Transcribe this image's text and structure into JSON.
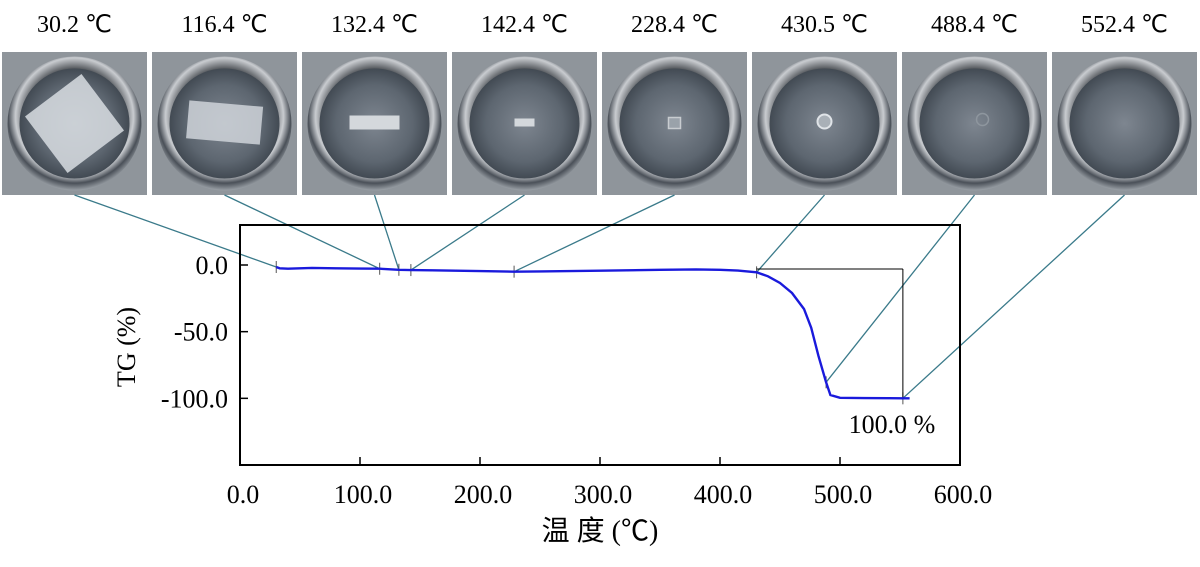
{
  "chart_data": {
    "type": "line",
    "xlabel": "温 度 (℃)",
    "ylabel": "TG (%)",
    "xlim": [
      0,
      600
    ],
    "ylim": [
      -150,
      30
    ],
    "x_ticks": [
      "0.0",
      "100.0",
      "200.0",
      "300.0",
      "400.0",
      "500.0",
      "600.0"
    ],
    "x_tick_values": [
      0,
      100,
      200,
      300,
      400,
      500,
      600
    ],
    "y_ticks": [
      "0.0",
      "-50.0",
      "-100.0"
    ],
    "y_tick_values": [
      0,
      -50,
      -100
    ],
    "grid": false,
    "series": [
      {
        "color": "#1a1adc",
        "x": [
          30.2,
          33,
          40,
          60,
          80,
          100,
          116.4,
          125,
          132.4,
          142.4,
          160,
          180,
          200,
          228.4,
          250,
          300,
          350,
          380,
          400,
          415,
          430.5,
          440,
          450,
          460,
          470,
          476,
          482,
          488.4,
          492,
          500,
          520,
          540,
          552.4,
          558
        ],
        "values": [
          -1.5,
          -2.5,
          -2.8,
          -2.2,
          -2.5,
          -2.7,
          -2.8,
          -3.2,
          -3.6,
          -3.8,
          -4.0,
          -4.3,
          -4.6,
          -5.0,
          -4.8,
          -4.3,
          -3.6,
          -3.3,
          -3.6,
          -4.2,
          -5.5,
          -8.5,
          -13.5,
          -21,
          -33,
          -47,
          -68,
          -88,
          -97.5,
          -99.6,
          -99.8,
          -99.9,
          -100.0,
          -100.0
        ]
      }
    ],
    "annotations": [
      {
        "text": "100.0 %",
        "x": 553,
        "y": -120
      }
    ],
    "markers": [
      30.2,
      116.4,
      132.4,
      142.4,
      228.4,
      430.5,
      488.4,
      552.4
    ],
    "mass_loss_bracket": {
      "x_start": 430.5,
      "x_end": 552.4,
      "y_top": -3,
      "y_bottom": -100
    }
  },
  "photos": [
    {
      "label": "30.2 ℃",
      "temperature": 30.2,
      "sample": "large-diamond-film"
    },
    {
      "label": "116.4 ℃",
      "temperature": 116.4,
      "sample": "shrunk-rectangular-film"
    },
    {
      "label": "132.4 ℃",
      "temperature": 132.4,
      "sample": "small-strip"
    },
    {
      "label": "142.4 ℃",
      "temperature": 142.4,
      "sample": "tiny-strip"
    },
    {
      "label": "228.4 ℃",
      "temperature": 228.4,
      "sample": "melted-square"
    },
    {
      "label": "430.5 ℃",
      "temperature": 430.5,
      "sample": "droplet"
    },
    {
      "label": "488.4 ℃",
      "temperature": 488.4,
      "sample": "faint-residue"
    },
    {
      "label": "552.4 ℃",
      "temperature": 552.4,
      "sample": "empty-pan"
    }
  ],
  "colors": {
    "curve": "#1a1adc",
    "connector": "#3a7a8a",
    "frame": "#000000"
  }
}
